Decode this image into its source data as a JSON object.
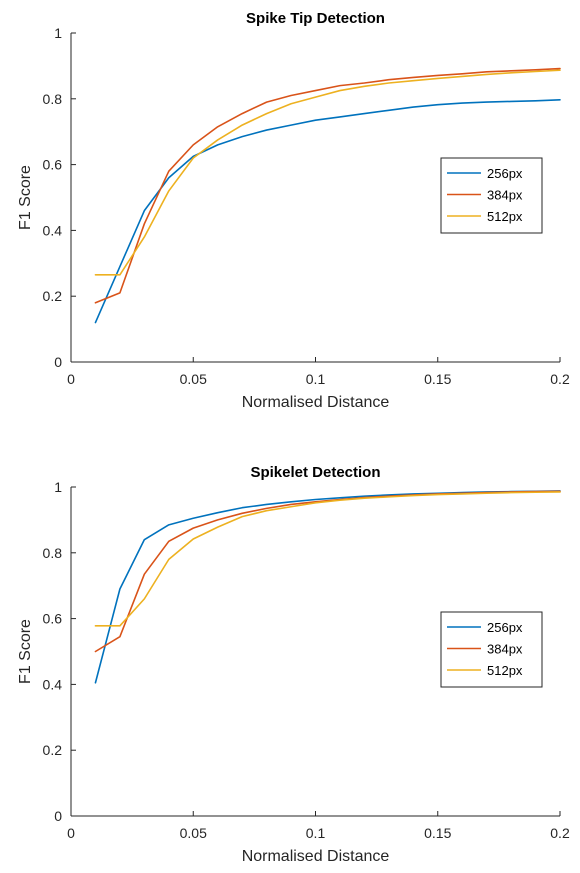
{
  "chart_data": [
    {
      "type": "line",
      "title": "Spike Tip Detection",
      "xlabel": "Normalised Distance",
      "ylabel": "F1 Score",
      "xlim": [
        0,
        0.2
      ],
      "ylim": [
        0,
        1
      ],
      "xticks": [
        0,
        0.05,
        0.1,
        0.15,
        0.2
      ],
      "xtick_labels": [
        "0",
        "0.05",
        "0.1",
        "0.15",
        "0.2"
      ],
      "yticks": [
        0,
        0.2,
        0.4,
        0.6,
        0.8,
        1
      ],
      "ytick_labels": [
        "0",
        "0.2",
        "0.4",
        "0.6",
        "0.8",
        "1"
      ],
      "grid": false,
      "legend_position": "right",
      "x": [
        0.01,
        0.02,
        0.03,
        0.04,
        0.05,
        0.06,
        0.07,
        0.08,
        0.09,
        0.1,
        0.11,
        0.12,
        0.13,
        0.14,
        0.15,
        0.16,
        0.17,
        0.18,
        0.19,
        0.2
      ],
      "series": [
        {
          "name": "256px",
          "color": "#0072BD",
          "values": [
            0.12,
            0.29,
            0.46,
            0.56,
            0.625,
            0.66,
            0.685,
            0.705,
            0.72,
            0.735,
            0.745,
            0.755,
            0.765,
            0.775,
            0.782,
            0.787,
            0.79,
            0.792,
            0.794,
            0.797
          ]
        },
        {
          "name": "384px",
          "color": "#D95319",
          "values": [
            0.18,
            0.21,
            0.42,
            0.58,
            0.66,
            0.715,
            0.755,
            0.79,
            0.81,
            0.825,
            0.84,
            0.848,
            0.858,
            0.865,
            0.871,
            0.876,
            0.882,
            0.885,
            0.888,
            0.892
          ]
        },
        {
          "name": "512px",
          "color": "#EDB120",
          "values": [
            0.265,
            0.265,
            0.38,
            0.52,
            0.62,
            0.675,
            0.72,
            0.755,
            0.785,
            0.805,
            0.825,
            0.838,
            0.848,
            0.855,
            0.862,
            0.868,
            0.874,
            0.879,
            0.883,
            0.887
          ]
        }
      ]
    },
    {
      "type": "line",
      "title": "Spikelet Detection",
      "xlabel": "Normalised Distance",
      "ylabel": "F1 Score",
      "xlim": [
        0,
        0.2
      ],
      "ylim": [
        0,
        1
      ],
      "xticks": [
        0,
        0.05,
        0.1,
        0.15,
        0.2
      ],
      "xtick_labels": [
        "0",
        "0.05",
        "0.1",
        "0.15",
        "0.2"
      ],
      "yticks": [
        0,
        0.2,
        0.4,
        0.6,
        0.8,
        1
      ],
      "ytick_labels": [
        "0",
        "0.2",
        "0.4",
        "0.6",
        "0.8",
        "1"
      ],
      "grid": false,
      "legend_position": "right",
      "x": [
        0.01,
        0.02,
        0.03,
        0.04,
        0.05,
        0.06,
        0.07,
        0.08,
        0.09,
        0.1,
        0.11,
        0.12,
        0.13,
        0.14,
        0.15,
        0.16,
        0.17,
        0.18,
        0.19,
        0.2
      ],
      "series": [
        {
          "name": "256px",
          "color": "#0072BD",
          "values": [
            0.405,
            0.69,
            0.84,
            0.885,
            0.905,
            0.922,
            0.937,
            0.947,
            0.955,
            0.962,
            0.967,
            0.972,
            0.976,
            0.979,
            0.981,
            0.983,
            0.985,
            0.986,
            0.987,
            0.988
          ]
        },
        {
          "name": "384px",
          "color": "#D95319",
          "values": [
            0.5,
            0.545,
            0.735,
            0.835,
            0.875,
            0.9,
            0.92,
            0.935,
            0.947,
            0.955,
            0.962,
            0.968,
            0.972,
            0.976,
            0.979,
            0.981,
            0.983,
            0.985,
            0.986,
            0.987
          ]
        },
        {
          "name": "512px",
          "color": "#EDB120",
          "values": [
            0.578,
            0.578,
            0.66,
            0.78,
            0.842,
            0.878,
            0.91,
            0.928,
            0.94,
            0.952,
            0.96,
            0.966,
            0.97,
            0.974,
            0.977,
            0.979,
            0.981,
            0.983,
            0.984,
            0.985
          ]
        }
      ]
    }
  ]
}
